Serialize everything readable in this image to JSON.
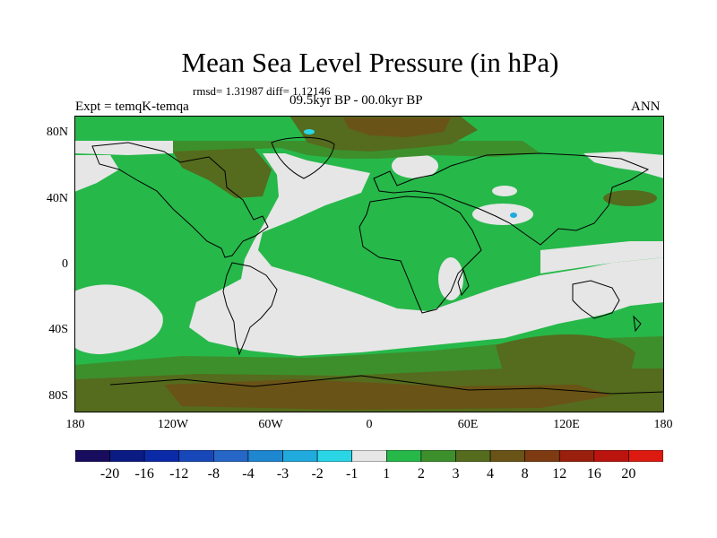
{
  "title": "Mean Sea Level Pressure (in hPa)",
  "stats_line": "rmsd= 1.31987 diff= 1.12146",
  "period": "09.5kyr BP - 00.0kyr BP",
  "experiment": "Expt = temqK-temqa",
  "season": "ANN",
  "y_ticks": [
    "80N",
    "40N",
    "0",
    "40S",
    "80S"
  ],
  "x_ticks": [
    "180",
    "120W",
    "60W",
    "0",
    "60E",
    "120E",
    "180"
  ],
  "colorbar": {
    "labels": [
      "-20",
      "-16",
      "-12",
      "-8",
      "-4",
      "-3",
      "-2",
      "-1",
      "1",
      "2",
      "3",
      "4",
      "8",
      "12",
      "16",
      "20"
    ],
    "colors": [
      "#180c5e",
      "#0b1b84",
      "#0a2aa8",
      "#1747b8",
      "#2566c6",
      "#1f86d0",
      "#21aadd",
      "#2ad6e6",
      "#e6e6e6",
      "#27b84a",
      "#3d8f2c",
      "#556b1d",
      "#6a5316",
      "#7e3b11",
      "#9a1f0d",
      "#bb130e",
      "#dd1a10"
    ]
  },
  "map_colors": {
    "neutral": "#e6e6e6",
    "green": "#27b84a",
    "darkgreen": "#3d8f2c",
    "olive": "#556b1d",
    "brown": "#6a5316",
    "cyan": "#2ad6e6"
  }
}
